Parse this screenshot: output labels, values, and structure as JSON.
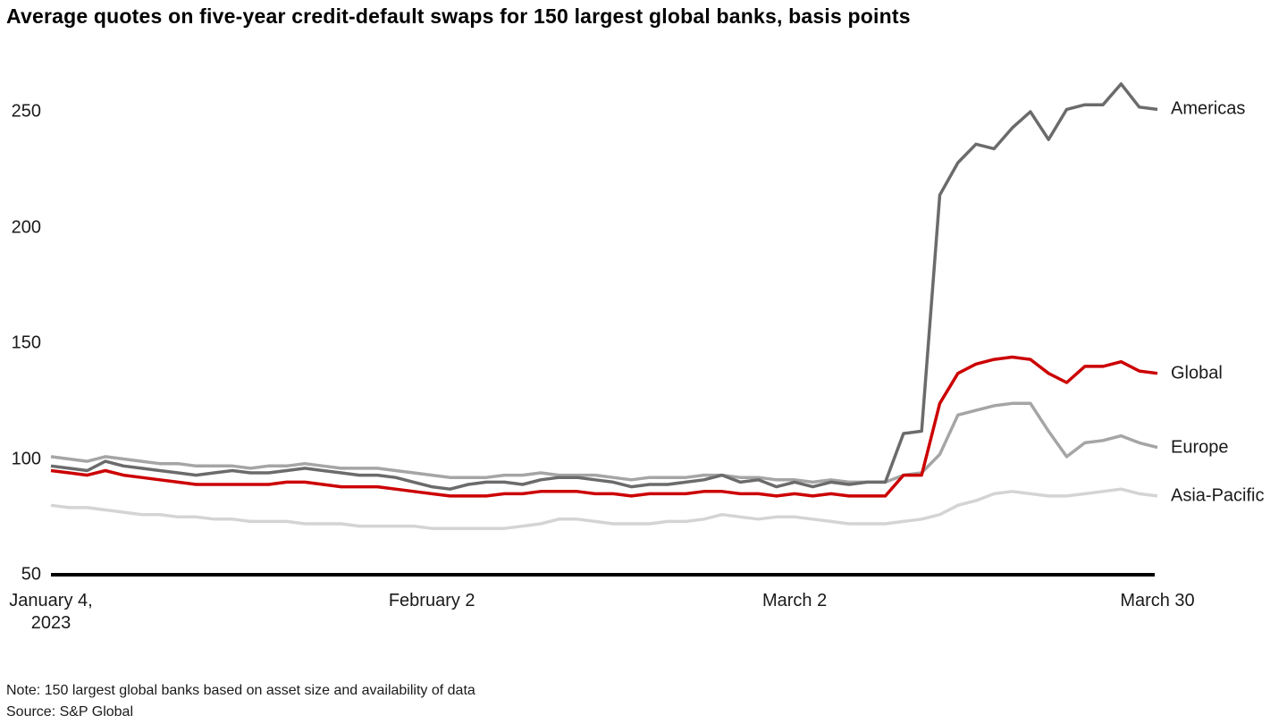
{
  "title": "Average quotes on five-year credit-default swaps for 150 largest global banks, basis points",
  "note": {
    "line1": "Note: 150 largest global banks based on asset size and availability of data",
    "line2": "Source: S&P Global"
  },
  "chart_data": {
    "type": "line",
    "title": "Average quotes on five-year credit-default swaps for 150 largest global banks, basis points",
    "xlabel": "",
    "ylabel": "basis points",
    "ylim": [
      50,
      270
    ],
    "grid": false,
    "legend_position": "right-of-line-ends",
    "x_unit": "business days from January 4, 2023 to March 30, 2023",
    "n_points": 62,
    "y_ticks": [
      50,
      100,
      150,
      200,
      250
    ],
    "x_ticks": [
      {
        "label": "January 4,",
        "sublabel": "2023",
        "index": 0
      },
      {
        "label": "February 2",
        "sublabel": "",
        "index": 21
      },
      {
        "label": "March 2",
        "sublabel": "",
        "index": 41
      },
      {
        "label": "March 30",
        "sublabel": "",
        "index": 61
      }
    ],
    "axis_color": "#000000",
    "series": [
      {
        "name": "Americas",
        "color": "#6b6b6b",
        "values": [
          97,
          96,
          95,
          99,
          97,
          96,
          95,
          94,
          93,
          94,
          95,
          94,
          94,
          95,
          96,
          95,
          94,
          93,
          93,
          92,
          90,
          88,
          87,
          89,
          90,
          90,
          89,
          91,
          92,
          92,
          91,
          90,
          88,
          89,
          89,
          90,
          91,
          93,
          90,
          91,
          88,
          90,
          88,
          90,
          89,
          90,
          90,
          111,
          112,
          214,
          228,
          236,
          234,
          243,
          250,
          238,
          251,
          253,
          253,
          262,
          252,
          251
        ]
      },
      {
        "name": "Global",
        "color": "#cc0000",
        "values": [
          95,
          94,
          93,
          95,
          93,
          92,
          91,
          90,
          89,
          89,
          89,
          89,
          89,
          90,
          90,
          89,
          88,
          88,
          88,
          87,
          86,
          85,
          84,
          84,
          84,
          85,
          85,
          86,
          86,
          86,
          85,
          85,
          84,
          85,
          85,
          85,
          86,
          86,
          85,
          85,
          84,
          85,
          84,
          85,
          84,
          84,
          84,
          93,
          93,
          124,
          137,
          141,
          143,
          144,
          143,
          137,
          133,
          140,
          140,
          142,
          138,
          137
        ]
      },
      {
        "name": "Europe",
        "color": "#a5a5a5",
        "values": [
          101,
          100,
          99,
          101,
          100,
          99,
          98,
          98,
          97,
          97,
          97,
          96,
          97,
          97,
          98,
          97,
          96,
          96,
          96,
          95,
          94,
          93,
          92,
          92,
          92,
          93,
          93,
          94,
          93,
          93,
          93,
          92,
          91,
          92,
          92,
          92,
          93,
          93,
          92,
          92,
          91,
          91,
          90,
          91,
          90,
          90,
          90,
          93,
          94,
          102,
          119,
          121,
          123,
          124,
          124,
          112,
          101,
          107,
          108,
          110,
          107,
          105
        ]
      },
      {
        "name": "Asia-Pacific",
        "color": "#d4d4d4",
        "values": [
          80,
          79,
          79,
          78,
          77,
          76,
          76,
          75,
          75,
          74,
          74,
          73,
          73,
          73,
          72,
          72,
          72,
          71,
          71,
          71,
          71,
          70,
          70,
          70,
          70,
          70,
          71,
          72,
          74,
          74,
          73,
          72,
          72,
          72,
          73,
          73,
          74,
          76,
          75,
          74,
          75,
          75,
          74,
          73,
          72,
          72,
          72,
          73,
          74,
          76,
          80,
          82,
          85,
          86,
          85,
          84,
          84,
          85,
          86,
          87,
          85,
          84
        ]
      }
    ]
  }
}
